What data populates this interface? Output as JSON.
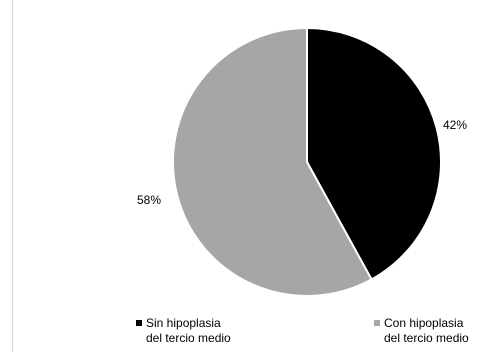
{
  "chart_data": {
    "type": "pie",
    "slices": [
      {
        "name_line1": "Sin hipoplasia",
        "name_line2": "del tercio medio",
        "value": 42,
        "label": "42%",
        "color": "#000000"
      },
      {
        "name_line1": "Con hipoplasia",
        "name_line2": "del tercio medio",
        "value": 58,
        "label": "58%",
        "color": "#a6a6a6"
      }
    ],
    "start_angle_deg": 0,
    "direction": "clockwise",
    "slice_border_color": "#ffffff",
    "legend_placement": "bottom"
  }
}
